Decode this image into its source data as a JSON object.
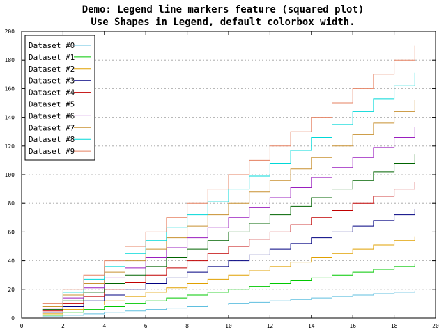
{
  "chart_data": {
    "type": "line",
    "style": "steps",
    "title_line1": "Demo: Legend line markers feature (squared plot)",
    "title_line2": "Use Shapes in Legend, default colorbox width.",
    "xlabel": "",
    "ylabel": "",
    "xlim": [
      0,
      20
    ],
    "ylim": [
      0,
      200
    ],
    "x_ticks": [
      "0",
      "2",
      "4",
      "6",
      "8",
      "10",
      "12",
      "14",
      "16",
      "18",
      "20"
    ],
    "y_ticks": [
      "0",
      "20",
      "40",
      "60",
      "80",
      "100",
      "120",
      "140",
      "160",
      "180",
      "200"
    ],
    "grid": true,
    "legend_position": "top-left",
    "x": [
      1,
      2,
      3,
      4,
      5,
      6,
      7,
      8,
      9,
      10,
      11,
      12,
      13,
      14,
      15,
      16,
      17,
      18,
      19
    ],
    "series": [
      {
        "name": "Dataset #0",
        "color": "#5fbfdf",
        "values": [
          1,
          2,
          3,
          4,
          5,
          6,
          7,
          8,
          9,
          10,
          11,
          12,
          13,
          14,
          15,
          16,
          17,
          18,
          19
        ]
      },
      {
        "name": "Dataset #1",
        "color": "#00c800",
        "values": [
          2,
          4,
          6,
          8,
          10,
          12,
          14,
          16,
          18,
          20,
          22,
          24,
          26,
          28,
          30,
          32,
          34,
          36,
          38
        ]
      },
      {
        "name": "Dataset #2",
        "color": "#e0a000",
        "values": [
          3,
          6,
          9,
          12,
          15,
          18,
          21,
          24,
          27,
          30,
          33,
          36,
          39,
          42,
          45,
          48,
          51,
          54,
          57
        ]
      },
      {
        "name": "Dataset #3",
        "color": "#000080",
        "values": [
          4,
          8,
          12,
          16,
          20,
          24,
          28,
          32,
          36,
          40,
          44,
          48,
          52,
          56,
          60,
          64,
          68,
          72,
          76
        ]
      },
      {
        "name": "Dataset #4",
        "color": "#c00000",
        "values": [
          5,
          10,
          15,
          20,
          25,
          30,
          35,
          40,
          45,
          50,
          55,
          60,
          65,
          70,
          75,
          80,
          85,
          90,
          95
        ]
      },
      {
        "name": "Dataset #5",
        "color": "#006400",
        "values": [
          6,
          12,
          18,
          24,
          30,
          36,
          42,
          48,
          54,
          60,
          66,
          72,
          78,
          84,
          90,
          96,
          102,
          108,
          114
        ]
      },
      {
        "name": "Dataset #6",
        "color": "#9a1fbf",
        "values": [
          7,
          14,
          21,
          28,
          35,
          42,
          49,
          56,
          63,
          70,
          77,
          84,
          91,
          98,
          105,
          112,
          119,
          126,
          133
        ]
      },
      {
        "name": "Dataset #7",
        "color": "#c89030",
        "values": [
          8,
          16,
          24,
          32,
          40,
          48,
          56,
          64,
          72,
          80,
          88,
          96,
          104,
          112,
          120,
          128,
          136,
          144,
          152
        ]
      },
      {
        "name": "Dataset #8",
        "color": "#00d8d8",
        "values": [
          9,
          18,
          27,
          36,
          45,
          54,
          63,
          72,
          81,
          90,
          99,
          108,
          117,
          126,
          135,
          144,
          153,
          162,
          171
        ]
      },
      {
        "name": "Dataset #9",
        "color": "#e58060",
        "values": [
          10,
          20,
          30,
          40,
          50,
          60,
          70,
          80,
          90,
          100,
          110,
          120,
          130,
          140,
          150,
          160,
          170,
          180,
          190
        ]
      }
    ]
  }
}
